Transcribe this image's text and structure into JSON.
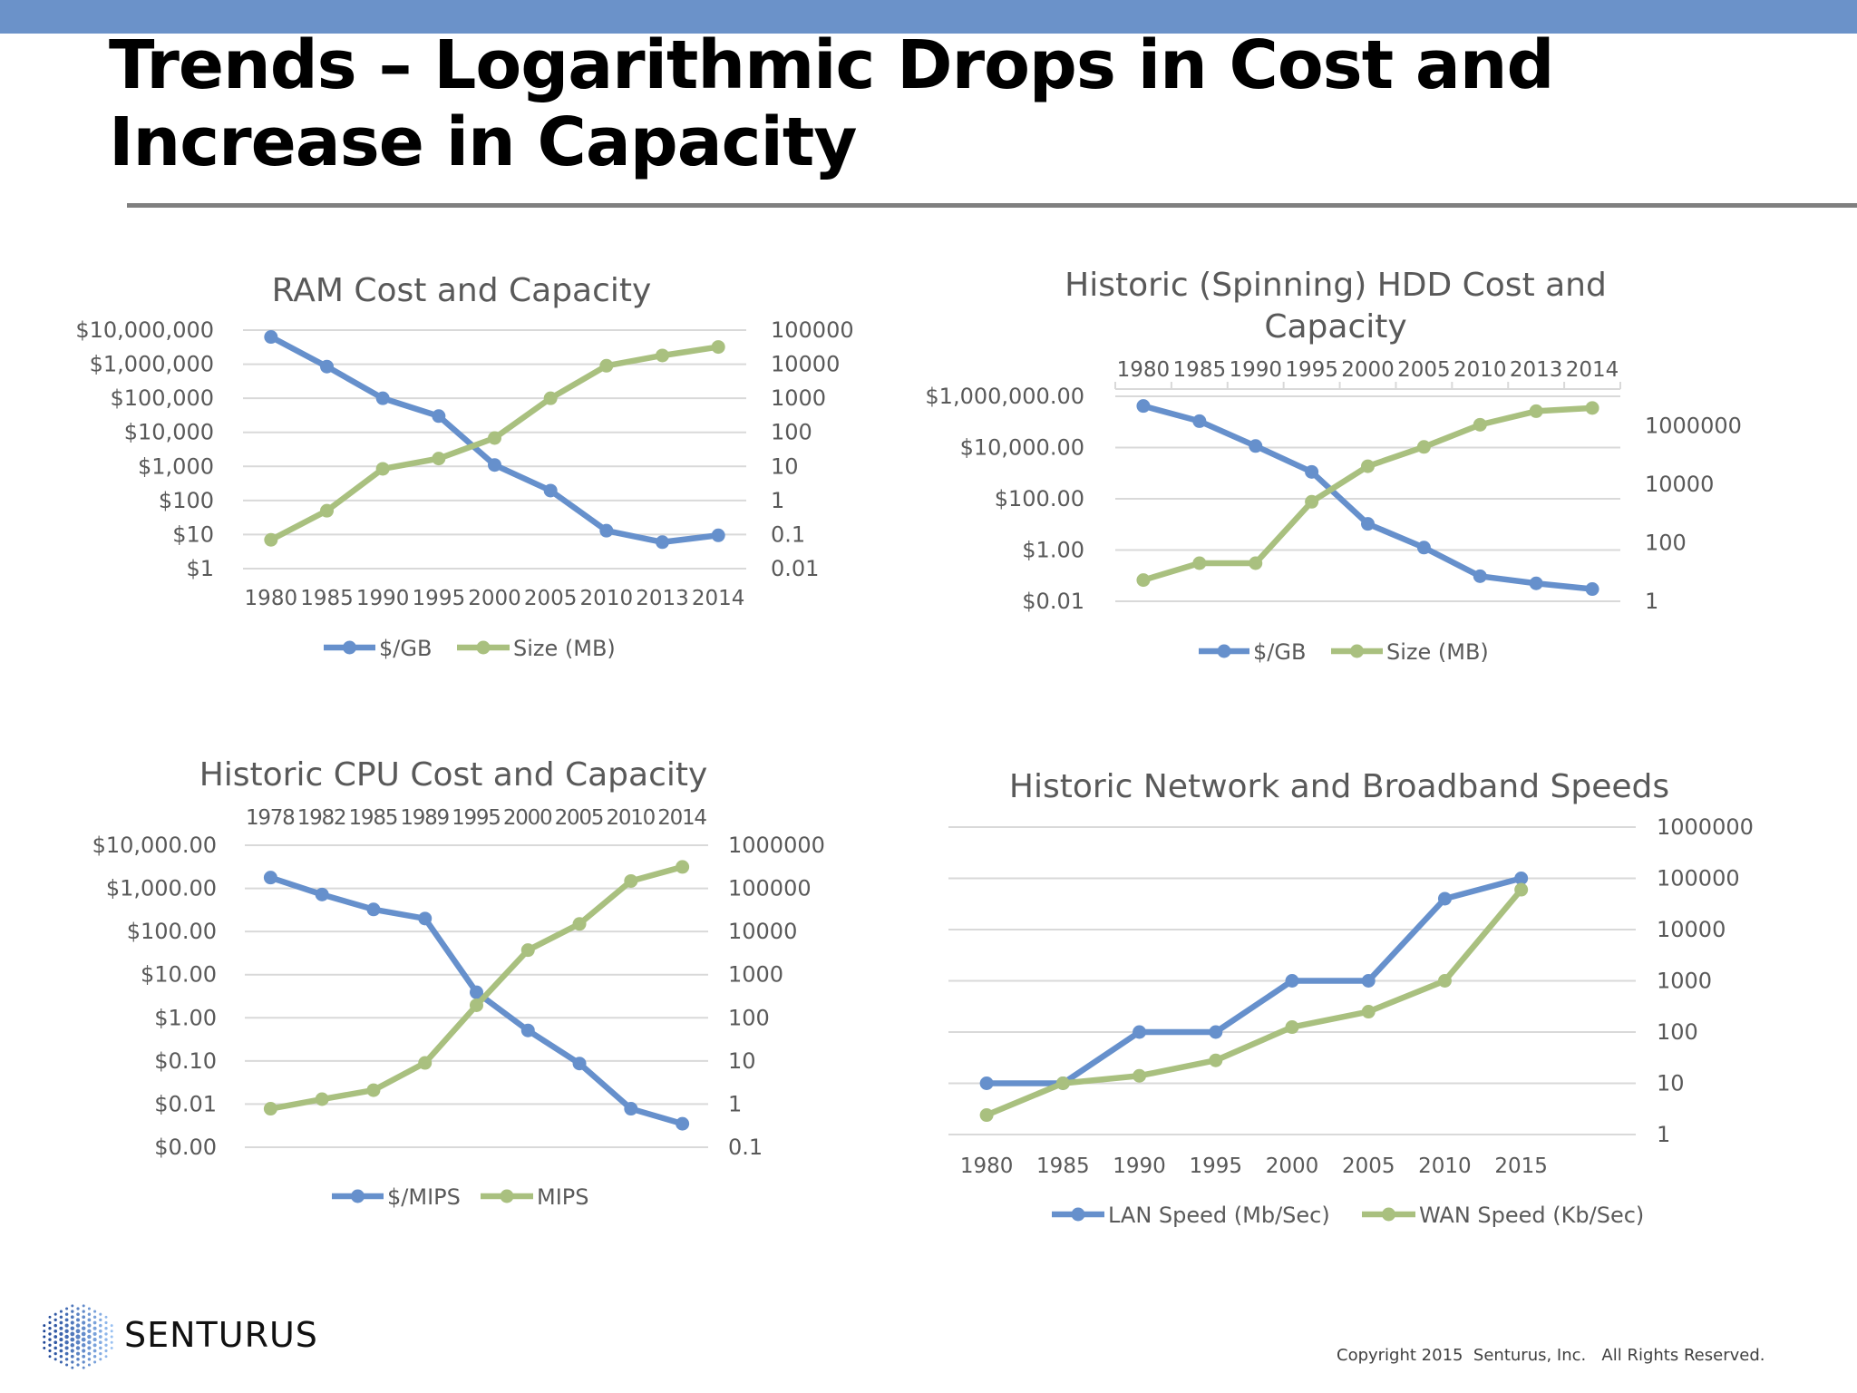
{
  "slide": {
    "title": "Trends – Logarithmic Drops in Cost and Increase in Capacity",
    "logo_text": "SENTURUS",
    "copyright": "Copyright 2015  Senturus, Inc.   All Rights Reserved.",
    "colors": {
      "top_bar": "#6b92c9",
      "series_blue": "#6690cc",
      "series_green": "#a9c07f",
      "gridline": "#d9d9d9"
    }
  },
  "chart_data": [
    {
      "type": "line",
      "title": "RAM Cost and Capacity",
      "scale": "log",
      "grid": true,
      "legend_position": "bottom",
      "x_axis_position": "bottom",
      "categories": [
        "1980",
        "1985",
        "1990",
        "1995",
        "2000",
        "2005",
        "2010",
        "2013",
        "2014"
      ],
      "left_axis": {
        "ylim": [
          1,
          10000000
        ],
        "ticks": [
          {
            "v": 10000000,
            "label": "$10,000,000"
          },
          {
            "v": 1000000,
            "label": "$1,000,000"
          },
          {
            "v": 100000,
            "label": "$100,000"
          },
          {
            "v": 10000,
            "label": "$10,000"
          },
          {
            "v": 1000,
            "label": "$1,000"
          },
          {
            "v": 100,
            "label": "$100"
          },
          {
            "v": 10,
            "label": "$10"
          },
          {
            "v": 1,
            "label": "$1"
          }
        ]
      },
      "right_axis": {
        "ylim": [
          0.01,
          100000
        ],
        "ticks": [
          {
            "v": 100000,
            "label": "100000"
          },
          {
            "v": 10000,
            "label": "10000"
          },
          {
            "v": 1000,
            "label": "1000"
          },
          {
            "v": 100,
            "label": "100"
          },
          {
            "v": 10,
            "label": "10"
          },
          {
            "v": 1,
            "label": "1"
          },
          {
            "v": 0.1,
            "label": "0.1"
          },
          {
            "v": 0.01,
            "label": "0.01"
          }
        ]
      },
      "series": [
        {
          "name": "$/GB",
          "axis": "left",
          "color": "#6690cc",
          "values": [
            6300000,
            850000,
            100000,
            30000,
            1100,
            195,
            13,
            6,
            9.5
          ]
        },
        {
          "name": "Size (MB)",
          "axis": "right",
          "color": "#a9c07f",
          "values": [
            0.07,
            0.5,
            8.5,
            17,
            68,
            1000,
            9000,
            18000,
            32000
          ]
        }
      ]
    },
    {
      "type": "line",
      "title": "Historic (Spinning) HDD Cost and Capacity",
      "title_lines": [
        "Historic (Spinning) HDD Cost and",
        "Capacity"
      ],
      "scale": "log",
      "grid": true,
      "legend_position": "bottom",
      "x_axis_position": "top",
      "categories": [
        "1980",
        "1985",
        "1990",
        "1995",
        "2000",
        "2005",
        "2010",
        "2013",
        "2014"
      ],
      "left_axis": {
        "ylim": [
          0.01,
          1000000
        ],
        "ticks": [
          {
            "v": 1000000,
            "label": "$1,000,000.00"
          },
          {
            "v": 10000,
            "label": "$10,000.00"
          },
          {
            "v": 100,
            "label": "$100.00"
          },
          {
            "v": 1,
            "label": "$1.00"
          },
          {
            "v": 0.01,
            "label": "$0.01"
          }
        ]
      },
      "right_axis": {
        "ylim": [
          1,
          10000000
        ],
        "ticks": [
          {
            "v": 1000000,
            "label": "1000000"
          },
          {
            "v": 10000,
            "label": "10000"
          },
          {
            "v": 100,
            "label": "100"
          },
          {
            "v": 1,
            "label": "1"
          }
        ]
      },
      "series": [
        {
          "name": "$/GB",
          "axis": "left",
          "color": "#6690cc",
          "values": [
            420000,
            107000,
            11500,
            1120,
            10.5,
            1.25,
            0.095,
            0.05,
            0.03
          ]
        },
        {
          "name": "Size (MB)",
          "axis": "right",
          "color": "#a9c07f",
          "values": [
            5.3,
            20,
            20,
            2500,
            41000,
            187000,
            1070000,
            3100000,
            4000000
          ]
        }
      ]
    },
    {
      "type": "line",
      "title": "Historic CPU Cost and Capacity",
      "scale": "log",
      "grid": true,
      "legend_position": "bottom",
      "x_axis_position": "top",
      "categories": [
        "1978",
        "1982",
        "1985",
        "1989",
        "1995",
        "2000",
        "2005",
        "2010",
        "2014"
      ],
      "left_axis": {
        "ylim": [
          0.001,
          10000
        ],
        "ticks": [
          {
            "v": 10000,
            "label": "$10,000.00"
          },
          {
            "v": 1000,
            "label": "$1,000.00"
          },
          {
            "v": 100,
            "label": "$100.00"
          },
          {
            "v": 10,
            "label": "$10.00"
          },
          {
            "v": 1,
            "label": "$1.00"
          },
          {
            "v": 0.1,
            "label": "$0.10"
          },
          {
            "v": 0.01,
            "label": "$0.01"
          },
          {
            "v": 0.001,
            "label": "$0.00"
          }
        ]
      },
      "right_axis": {
        "ylim": [
          0.1,
          1000000
        ],
        "ticks": [
          {
            "v": 1000000,
            "label": "1000000"
          },
          {
            "v": 100000,
            "label": "100000"
          },
          {
            "v": 10000,
            "label": "10000"
          },
          {
            "v": 1000,
            "label": "1000"
          },
          {
            "v": 100,
            "label": "100"
          },
          {
            "v": 10,
            "label": "10"
          },
          {
            "v": 1,
            "label": "1"
          },
          {
            "v": 0.1,
            "label": "0.1"
          }
        ]
      },
      "series": [
        {
          "name": "$/MIPS",
          "axis": "left",
          "color": "#6690cc",
          "values": [
            1780,
            720,
            325,
            200,
            3.9,
            0.51,
            0.087,
            0.0078,
            0.0035
          ]
        },
        {
          "name": "MIPS",
          "axis": "right",
          "color": "#a9c07f",
          "values": [
            0.78,
            1.3,
            2.1,
            9,
            195,
            3700,
            15000,
            148000,
            314000
          ]
        }
      ]
    },
    {
      "type": "line",
      "title": "Historic Network and Broadband Speeds",
      "scale": "log",
      "grid": true,
      "legend_position": "bottom",
      "x_axis_position": "bottom",
      "categories": [
        "1980",
        "1985",
        "1990",
        "1995",
        "2000",
        "2005",
        "2010",
        "2015"
      ],
      "right_axis": {
        "ylim": [
          1,
          1000000
        ],
        "ticks": [
          {
            "v": 1000000,
            "label": "1000000"
          },
          {
            "v": 100000,
            "label": "100000"
          },
          {
            "v": 10000,
            "label": "10000"
          },
          {
            "v": 1000,
            "label": "1000"
          },
          {
            "v": 100,
            "label": "100"
          },
          {
            "v": 10,
            "label": "10"
          },
          {
            "v": 1,
            "label": "1"
          }
        ]
      },
      "series": [
        {
          "name": "LAN Speed (Mb/Sec)",
          "axis": "right",
          "color": "#6690cc",
          "values": [
            10,
            10,
            100,
            100,
            1000,
            1000,
            40000,
            100000
          ]
        },
        {
          "name": "WAN Speed (Kb/Sec)",
          "axis": "right",
          "color": "#a9c07f",
          "values": [
            2.4,
            10,
            14,
            28,
            125,
            250,
            1000,
            60000
          ]
        }
      ]
    }
  ]
}
